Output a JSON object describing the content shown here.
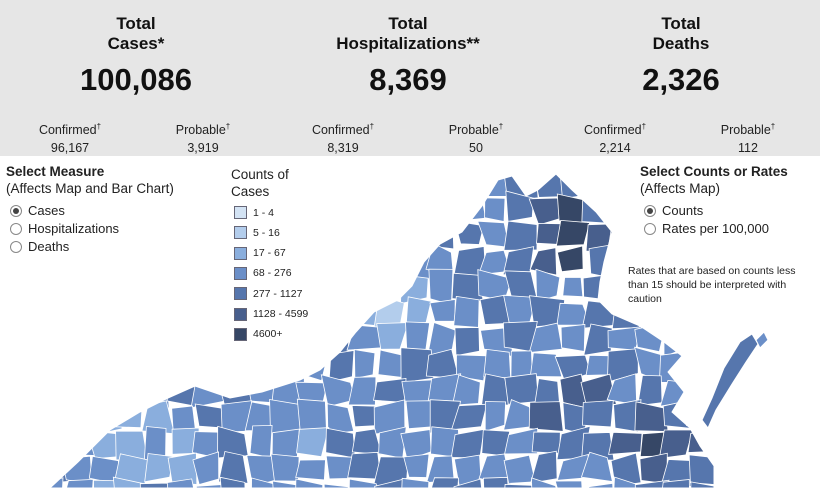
{
  "summary": {
    "cases": {
      "line1": "Total",
      "line2": "Cases*",
      "value": "100,086",
      "confirmed_label": "Confirmed",
      "confirmed_value": "96,167",
      "probable_label": "Probable",
      "probable_value": "3,919"
    },
    "hospitalizations": {
      "line1": "Total",
      "line2": "Hospitalizations**",
      "value": "8,369",
      "confirmed_label": "Confirmed",
      "confirmed_value": "8,319",
      "probable_label": "Probable",
      "probable_value": "50"
    },
    "deaths": {
      "line1": "Total",
      "line2": "Deaths",
      "value": "2,326",
      "confirmed_label": "Confirmed",
      "confirmed_value": "2,214",
      "probable_label": "Probable",
      "probable_value": "112"
    },
    "dagger": "†"
  },
  "measure": {
    "title": "Select Measure",
    "subtitle": "(Affects Map and Bar Chart)",
    "options": [
      {
        "label": "Cases",
        "selected": true
      },
      {
        "label": "Hospitalizations",
        "selected": false
      },
      {
        "label": "Deaths",
        "selected": false
      }
    ]
  },
  "legend": {
    "title_line1": "Counts of",
    "title_line2": "Cases",
    "items": [
      {
        "label": "1 - 4",
        "color": "#d3e3f4"
      },
      {
        "label": "5 - 16",
        "color": "#b3cdec"
      },
      {
        "label": "17 - 67",
        "color": "#8aaedd"
      },
      {
        "label": "68 - 276",
        "color": "#6b8fc8"
      },
      {
        "label": "277 - 1127",
        "color": "#5676ad"
      },
      {
        "label": "1128 - 4599",
        "color": "#485f8d"
      },
      {
        "label": "4600+",
        "color": "#364766"
      }
    ]
  },
  "rates": {
    "title": "Select Counts or Rates",
    "subtitle": "(Affects Map)",
    "options": [
      {
        "label": "Counts",
        "selected": true
      },
      {
        "label": "Rates per 100,000",
        "selected": false
      }
    ],
    "note": "Rates that are based on counts less than 15 should be interpreted with caution"
  },
  "map": {
    "name": "Virginia localities map"
  }
}
